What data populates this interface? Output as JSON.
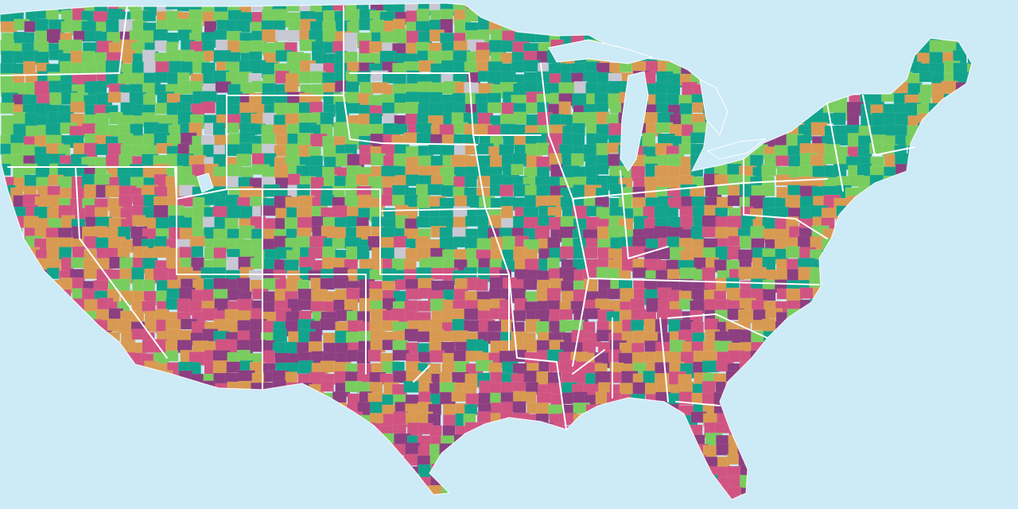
{
  "map": {
    "palette": {
      "ocean": "#cdeaf7",
      "teal": "#12a38c",
      "light_green": "#79cd5f",
      "orange": "#d89a52",
      "pink": "#d05482",
      "purple": "#8c3f81",
      "no_data_gray": "#c7c8d3",
      "state_border": "#ffffff"
    },
    "regions": [
      {
        "name": "pacific-northwest",
        "pattern": "teal-green-dominant"
      },
      {
        "name": "california",
        "pattern": "orange-pink-dominant"
      },
      {
        "name": "nevada",
        "pattern": "green-orange-mixed"
      },
      {
        "name": "southwest",
        "pattern": "purple-pink-dominant"
      },
      {
        "name": "mountain-west",
        "pattern": "teal-green-dominant"
      },
      {
        "name": "northern-plains",
        "pattern": "teal-green-dominant"
      },
      {
        "name": "central-plains",
        "pattern": "teal-orange-mixed"
      },
      {
        "name": "texas",
        "pattern": "pink-purple-orange-mixed"
      },
      {
        "name": "upper-midwest",
        "pattern": "teal-dominant"
      },
      {
        "name": "midwest",
        "pattern": "teal-orange-mixed"
      },
      {
        "name": "appalachia",
        "pattern": "purple-pink-dominant"
      },
      {
        "name": "deep-south",
        "pattern": "pink-purple-dominant"
      },
      {
        "name": "florida",
        "pattern": "orange-pink-mixed"
      },
      {
        "name": "northeast",
        "pattern": "teal-green-dominant"
      }
    ]
  }
}
